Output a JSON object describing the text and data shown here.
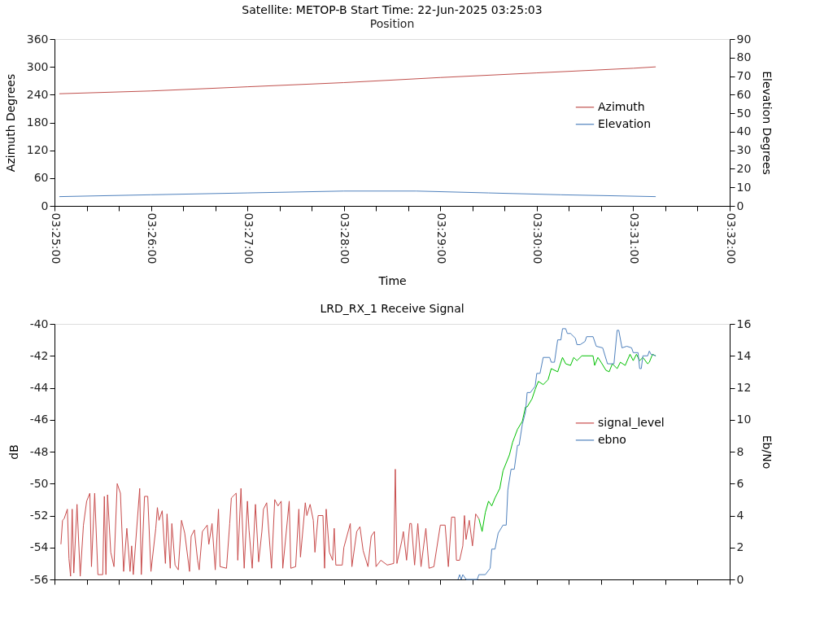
{
  "chart_data": [
    {
      "type": "line",
      "title": "Satellite: METOP-B    Start Time: 22-Jun-2025 03:25:03",
      "subtitle": "Position",
      "xlabel": "Time",
      "ylabel": "Azimuth Degrees",
      "y2label": "Elevation Degrees",
      "xlim": [
        "2025-06-22T03:25:00",
        "2025-06-22T03:32:00"
      ],
      "xticks": [
        {
          "value": "2025-06-22T03:25:00",
          "label": "03:25:00"
        },
        {
          "value": "2025-06-22T03:25:20",
          "label": null
        },
        {
          "value": "2025-06-22T03:25:40",
          "label": null
        },
        {
          "value": "2025-06-22T03:26:00",
          "label": "03:26:00"
        },
        {
          "value": "2025-06-22T03:26:20",
          "label": null
        },
        {
          "value": "2025-06-22T03:26:40",
          "label": null
        },
        {
          "value": "2025-06-22T03:27:00",
          "label": "03:27:00"
        },
        {
          "value": "2025-06-22T03:27:20",
          "label": null
        },
        {
          "value": "2025-06-22T03:27:40",
          "label": null
        },
        {
          "value": "2025-06-22T03:28:00",
          "label": "03:28:00"
        },
        {
          "value": "2025-06-22T03:28:20",
          "label": null
        },
        {
          "value": "2025-06-22T03:28:40",
          "label": null
        },
        {
          "value": "2025-06-22T03:29:00",
          "label": "03:29:00"
        },
        {
          "value": "2025-06-22T03:29:20",
          "label": null
        },
        {
          "value": "2025-06-22T03:29:40",
          "label": null
        },
        {
          "value": "2025-06-22T03:30:00",
          "label": "03:30:00"
        },
        {
          "value": "2025-06-22T03:30:20",
          "label": null
        },
        {
          "value": "2025-06-22T03:30:40",
          "label": null
        },
        {
          "value": "2025-06-22T03:31:00",
          "label": "03:31:00"
        },
        {
          "value": "2025-06-22T03:31:20",
          "label": null
        },
        {
          "value": "2025-06-22T03:31:40",
          "label": null
        },
        {
          "value": "2025-06-22T03:32:00",
          "label": "03:32:00"
        }
      ],
      "ylim": [
        0,
        360
      ],
      "yticks": [
        0,
        60,
        120,
        180,
        240,
        300,
        360
      ],
      "y2lim": [
        0,
        90
      ],
      "y2ticks": [
        0,
        10,
        20,
        30,
        40,
        50,
        60,
        70,
        80,
        90
      ],
      "grid": false,
      "legend": "right",
      "marker": "none",
      "line_style": "solid",
      "series": [
        {
          "name": "Azimuth",
          "color": "#c0504d",
          "x": [
            "2025-06-22T03:25:03",
            "2025-06-22T03:26:00",
            "2025-06-22T03:27:00",
            "2025-06-22T03:28:00",
            "2025-06-22T03:29:00",
            "2025-06-22T03:30:00",
            "2025-06-22T03:31:00",
            "2025-06-22T03:31:14"
          ],
          "values": [
            242,
            248,
            257,
            266,
            277,
            287,
            297,
            300
          ]
        },
        {
          "name": "Elevation",
          "color": "#4f81bd",
          "axis": "y2",
          "x": [
            "2025-06-22T03:25:03",
            "2025-06-22T03:26:00",
            "2025-06-22T03:27:00",
            "2025-06-22T03:28:00",
            "2025-06-22T03:28:45",
            "2025-06-22T03:29:30",
            "2025-06-22T03:30:15",
            "2025-06-22T03:31:14"
          ],
          "values": [
            5,
            6,
            7,
            8,
            8,
            7,
            6,
            5
          ]
        }
      ]
    },
    {
      "type": "line",
      "title": "LRD_RX_1 Receive Signal",
      "ylabel": "dB",
      "y2label": "Eb/No",
      "xlim": [
        "2025-06-22T03:25:00",
        "2025-06-22T03:32:00"
      ],
      "xticks": [
        {
          "value": "2025-06-22T03:25:00",
          "label": null
        },
        {
          "value": "2025-06-22T03:25:20",
          "label": null
        },
        {
          "value": "2025-06-22T03:25:40",
          "label": null
        },
        {
          "value": "2025-06-22T03:26:00",
          "label": null
        },
        {
          "value": "2025-06-22T03:26:20",
          "label": null
        },
        {
          "value": "2025-06-22T03:26:40",
          "label": null
        },
        {
          "value": "2025-06-22T03:27:00",
          "label": null
        },
        {
          "value": "2025-06-22T03:27:20",
          "label": null
        },
        {
          "value": "2025-06-22T03:27:40",
          "label": null
        },
        {
          "value": "2025-06-22T03:28:00",
          "label": null
        },
        {
          "value": "2025-06-22T03:28:20",
          "label": null
        },
        {
          "value": "2025-06-22T03:28:40",
          "label": null
        },
        {
          "value": "2025-06-22T03:29:00",
          "label": null
        },
        {
          "value": "2025-06-22T03:29:20",
          "label": null
        },
        {
          "value": "2025-06-22T03:29:40",
          "label": null
        },
        {
          "value": "2025-06-22T03:30:00",
          "label": null
        },
        {
          "value": "2025-06-22T03:30:20",
          "label": null
        },
        {
          "value": "2025-06-22T03:30:40",
          "label": null
        },
        {
          "value": "2025-06-22T03:31:00",
          "label": null
        },
        {
          "value": "2025-06-22T03:31:20",
          "label": null
        },
        {
          "value": "2025-06-22T03:31:40",
          "label": null
        },
        {
          "value": "2025-06-22T03:32:00",
          "label": null
        }
      ],
      "ylim": [
        -56,
        -40
      ],
      "yticks": [
        -56,
        -54,
        -52,
        -50,
        -48,
        -46,
        -44,
        -42,
        -40
      ],
      "y2lim": [
        0,
        16
      ],
      "y2ticks": [
        0,
        2,
        4,
        6,
        8,
        10,
        12,
        14,
        16
      ],
      "tick_labels": "y",
      "grid": false,
      "legend": "right",
      "marker": "none",
      "line_style": "solid",
      "series": [
        {
          "name": "signal_level",
          "color": "#c84b4b",
          "x": [
            "2025-06-22T03:25:04",
            "2025-06-22T03:25:05",
            "2025-06-22T03:25:06",
            "2025-06-22T03:25:08",
            "2025-06-22T03:25:09",
            "2025-06-22T03:25:10",
            "2025-06-22T03:25:11",
            "2025-06-22T03:25:12",
            "2025-06-22T03:25:14",
            "2025-06-22T03:25:16",
            "2025-06-22T03:25:18",
            "2025-06-22T03:25:20",
            "2025-06-22T03:25:22",
            "2025-06-22T03:25:23",
            "2025-06-22T03:25:25",
            "2025-06-22T03:25:27",
            "2025-06-22T03:25:30",
            "2025-06-22T03:25:31",
            "2025-06-22T03:25:32",
            "2025-06-22T03:25:33",
            "2025-06-22T03:25:35",
            "2025-06-22T03:25:37",
            "2025-06-22T03:25:39",
            "2025-06-22T03:25:41",
            "2025-06-22T03:25:43",
            "2025-06-22T03:25:45",
            "2025-06-22T03:25:47",
            "2025-06-22T03:25:48",
            "2025-06-22T03:25:49",
            "2025-06-22T03:25:53",
            "2025-06-22T03:25:54",
            "2025-06-22T03:25:56",
            "2025-06-22T03:25:58",
            "2025-06-22T03:26:00",
            "2025-06-22T03:26:03",
            "2025-06-22T03:26:04",
            "2025-06-22T03:26:05",
            "2025-06-22T03:26:07",
            "2025-06-22T03:26:09",
            "2025-06-22T03:26:10",
            "2025-06-22T03:26:12",
            "2025-06-22T03:26:13",
            "2025-06-22T03:26:15",
            "2025-06-22T03:26:17",
            "2025-06-22T03:26:19",
            "2025-06-22T03:26:21",
            "2025-06-22T03:26:24",
            "2025-06-22T03:26:25",
            "2025-06-22T03:26:27",
            "2025-06-22T03:26:29",
            "2025-06-22T03:26:30",
            "2025-06-22T03:26:32",
            "2025-06-22T03:26:35",
            "2025-06-22T03:26:36",
            "2025-06-22T03:26:38",
            "2025-06-22T03:26:40",
            "2025-06-22T03:26:42",
            "2025-06-22T03:26:43",
            "2025-06-22T03:26:47",
            "2025-06-22T03:26:49",
            "2025-06-22T03:26:50",
            "2025-06-22T03:26:53",
            "2025-06-22T03:26:54",
            "2025-06-22T03:26:56",
            "2025-06-22T03:26:58",
            "2025-06-22T03:27:00",
            "2025-06-22T03:27:01",
            "2025-06-22T03:27:03",
            "2025-06-22T03:27:05",
            "2025-06-22T03:27:07",
            "2025-06-22T03:27:09",
            "2025-06-22T03:27:10",
            "2025-06-22T03:27:12",
            "2025-06-22T03:27:15",
            "2025-06-22T03:27:17",
            "2025-06-22T03:27:19",
            "2025-06-22T03:27:21",
            "2025-06-22T03:27:22",
            "2025-06-22T03:27:26",
            "2025-06-22T03:27:27",
            "2025-06-22T03:27:30",
            "2025-06-22T03:27:32",
            "2025-06-22T03:27:33",
            "2025-06-22T03:27:36",
            "2025-06-22T03:27:37",
            "2025-06-22T03:27:39",
            "2025-06-22T03:27:41",
            "2025-06-22T03:27:42",
            "2025-06-22T03:27:44",
            "2025-06-22T03:27:47",
            "2025-06-22T03:27:48",
            "2025-06-22T03:27:49",
            "2025-06-22T03:27:51",
            "2025-06-22T03:27:53",
            "2025-06-22T03:27:54",
            "2025-06-22T03:27:55",
            "2025-06-22T03:27:59",
            "2025-06-22T03:28:00",
            "2025-06-22T03:28:04",
            "2025-06-22T03:28:05",
            "2025-06-22T03:28:08",
            "2025-06-22T03:28:10",
            "2025-06-22T03:28:12",
            "2025-06-22T03:28:15",
            "2025-06-22T03:28:17",
            "2025-06-22T03:28:19",
            "2025-06-22T03:28:20",
            "2025-06-22T03:28:23",
            "2025-06-22T03:28:27",
            "2025-06-22T03:28:31",
            "2025-06-22T03:28:32",
            "2025-06-22T03:28:33",
            "2025-06-22T03:28:36",
            "2025-06-22T03:28:37",
            "2025-06-22T03:28:39",
            "2025-06-22T03:28:41",
            "2025-06-22T03:28:42",
            "2025-06-22T03:28:44",
            "2025-06-22T03:28:46",
            "2025-06-22T03:28:48",
            "2025-06-22T03:28:51",
            "2025-06-22T03:28:53",
            "2025-06-22T03:28:56",
            "2025-06-22T03:29:00",
            "2025-06-22T03:29:03",
            "2025-06-22T03:29:05",
            "2025-06-22T03:29:07",
            "2025-06-22T03:29:09",
            "2025-06-22T03:29:10",
            "2025-06-22T03:29:12",
            "2025-06-22T03:29:14",
            "2025-06-22T03:29:15",
            "2025-06-22T03:29:16",
            "2025-06-22T03:29:18",
            "2025-06-22T03:29:20",
            "2025-06-22T03:29:21",
            "2025-06-22T03:29:22",
            "2025-06-22T03:29:24"
          ],
          "values": [
            -53.8,
            -52.3,
            -52.2,
            -51.6,
            -54.7,
            -55.8,
            -51.6,
            -55.6,
            -51.3,
            -55.8,
            -52.6,
            -51.1,
            -50.6,
            -55.2,
            -50.6,
            -55.7,
            -55.7,
            -50.8,
            -55.7,
            -50.7,
            -54.3,
            -55.2,
            -50.0,
            -50.6,
            -55.5,
            -52.8,
            -55.5,
            -53.9,
            -55.7,
            -50.3,
            -55.7,
            -50.8,
            -50.8,
            -55.5,
            -52.8,
            -51.5,
            -52.3,
            -51.7,
            -55.0,
            -51.9,
            -55.3,
            -52.5,
            -55.1,
            -55.4,
            -52.3,
            -53.1,
            -55.5,
            -53.3,
            -52.9,
            -54.8,
            -55.4,
            -53.0,
            -52.6,
            -53.8,
            -52.5,
            -55.4,
            -51.6,
            -55.2,
            -55.3,
            -52.5,
            -50.9,
            -50.6,
            -54.8,
            -50.3,
            -55.3,
            -51.1,
            -52.9,
            -55.3,
            -51.3,
            -54.9,
            -53.0,
            -51.6,
            -51.2,
            -55.3,
            -51.0,
            -51.4,
            -51.1,
            -55.3,
            -51.1,
            -55.3,
            -55.2,
            -51.6,
            -54.6,
            -51.2,
            -52.0,
            -51.3,
            -52.3,
            -54.3,
            -52.0,
            -52.0,
            -55.3,
            -51.6,
            -54.3,
            -54.8,
            -52.8,
            -55.1,
            -55.1,
            -54.0,
            -52.5,
            -55.2,
            -53.0,
            -52.7,
            -54.2,
            -55.2,
            -53.3,
            -53.0,
            -55.2,
            -54.8,
            -55.1,
            -55.0,
            -49.1,
            -55.0,
            -53.6,
            -53.0,
            -54.8,
            -52.5,
            -52.5,
            -55.1,
            -52.5,
            -55.2,
            -52.8,
            -55.3,
            -55.2,
            -52.6,
            -52.6,
            -55.2,
            -52.1,
            -52.1,
            -54.8,
            -54.8,
            -53.9,
            -52.0,
            -53.5,
            -52.3,
            -53.9,
            -52.9,
            -51.9,
            -52.2
          ]
        },
        {
          "color": "#00c000",
          "x": [
            "2025-06-22T03:29:24",
            "2025-06-22T03:29:26",
            "2025-06-22T03:29:28",
            "2025-06-22T03:29:30",
            "2025-06-22T03:29:32",
            "2025-06-22T03:29:34",
            "2025-06-22T03:29:37",
            "2025-06-22T03:29:39",
            "2025-06-22T03:29:43",
            "2025-06-22T03:29:45",
            "2025-06-22T03:29:48",
            "2025-06-22T03:29:51",
            "2025-06-22T03:29:53",
            "2025-06-22T03:29:54",
            "2025-06-22T03:29:57",
            "2025-06-22T03:29:59",
            "2025-06-22T03:30:01",
            "2025-06-22T03:30:04",
            "2025-06-22T03:30:07",
            "2025-06-22T03:30:09",
            "2025-06-22T03:30:13",
            "2025-06-22T03:30:16",
            "2025-06-22T03:30:18",
            "2025-06-22T03:30:21",
            "2025-06-22T03:30:23",
            "2025-06-22T03:30:25",
            "2025-06-22T03:30:28",
            "2025-06-22T03:30:35",
            "2025-06-22T03:30:36",
            "2025-06-22T03:30:38",
            "2025-06-22T03:30:40",
            "2025-06-22T03:30:43",
            "2025-06-22T03:30:45",
            "2025-06-22T03:30:47",
            "2025-06-22T03:30:50",
            "2025-06-22T03:30:52",
            "2025-06-22T03:30:55",
            "2025-06-22T03:30:58",
            "2025-06-22T03:31:00",
            "2025-06-22T03:31:02",
            "2025-06-22T03:31:04",
            "2025-06-22T03:31:06",
            "2025-06-22T03:31:09",
            "2025-06-22T03:31:10",
            "2025-06-22T03:31:12",
            "2025-06-22T03:31:14"
          ],
          "values": [
            -52.2,
            -53.0,
            -51.8,
            -51.1,
            -51.4,
            -50.9,
            -50.3,
            -49.2,
            -48.2,
            -47.4,
            -46.6,
            -46.1,
            -45.2,
            -45.2,
            -44.7,
            -44.1,
            -43.6,
            -43.8,
            -43.5,
            -42.8,
            -43.0,
            -42.1,
            -42.5,
            -42.6,
            -42.1,
            -42.3,
            -42.0,
            -42.0,
            -42.6,
            -42.1,
            -42.4,
            -42.9,
            -43.0,
            -42.5,
            -42.8,
            -42.4,
            -42.6,
            -41.9,
            -42.3,
            -41.9,
            -42.3,
            -42.1,
            -42.5,
            -42.4,
            -41.9,
            -42.0
          ]
        },
        {
          "name": "ebno",
          "color": "#4f81bd",
          "axis": "y2",
          "x": [
            "2025-06-22T03:29:11",
            "2025-06-22T03:29:12",
            "2025-06-22T03:29:13",
            "2025-06-22T03:29:14",
            "2025-06-22T03:29:16",
            "2025-06-22T03:29:23",
            "2025-06-22T03:29:24",
            "2025-06-22T03:29:28",
            "2025-06-22T03:29:31",
            "2025-06-22T03:29:32",
            "2025-06-22T03:29:34",
            "2025-06-22T03:29:36",
            "2025-06-22T03:29:39",
            "2025-06-22T03:29:41",
            "2025-06-22T03:29:42",
            "2025-06-22T03:29:44",
            "2025-06-22T03:29:46",
            "2025-06-22T03:29:48",
            "2025-06-22T03:29:49",
            "2025-06-22T03:29:51",
            "2025-06-22T03:29:53",
            "2025-06-22T03:29:54",
            "2025-06-22T03:29:56",
            "2025-06-22T03:29:59",
            "2025-06-22T03:30:00",
            "2025-06-22T03:30:02",
            "2025-06-22T03:30:04",
            "2025-06-22T03:30:08",
            "2025-06-22T03:30:09",
            "2025-06-22T03:30:11",
            "2025-06-22T03:30:13",
            "2025-06-22T03:30:15",
            "2025-06-22T03:30:16",
            "2025-06-22T03:30:18",
            "2025-06-22T03:30:19",
            "2025-06-22T03:30:21",
            "2025-06-22T03:30:24",
            "2025-06-22T03:30:25",
            "2025-06-22T03:30:27",
            "2025-06-22T03:30:30",
            "2025-06-22T03:30:31",
            "2025-06-22T03:30:35",
            "2025-06-22T03:30:37",
            "2025-06-22T03:30:41",
            "2025-06-22T03:30:44",
            "2025-06-22T03:30:48",
            "2025-06-22T03:30:50",
            "2025-06-22T03:30:51",
            "2025-06-22T03:30:53",
            "2025-06-22T03:30:56",
            "2025-06-22T03:30:59",
            "2025-06-22T03:31:00",
            "2025-06-22T03:31:03",
            "2025-06-22T03:31:04",
            "2025-06-22T03:31:05",
            "2025-06-22T03:31:06",
            "2025-06-22T03:31:09",
            "2025-06-22T03:31:10",
            "2025-06-22T03:31:11",
            "2025-06-22T03:31:14"
          ],
          "values": [
            0,
            0.3,
            0,
            0.3,
            0,
            0,
            0.3,
            0.3,
            0.7,
            1.9,
            1.9,
            2.9,
            3.4,
            3.4,
            5.6,
            6.9,
            6.9,
            8.4,
            8.4,
            9.7,
            10.5,
            11.7,
            11.7,
            12.1,
            12.9,
            12.9,
            13.9,
            13.9,
            13.6,
            13.6,
            15.0,
            15.0,
            15.7,
            15.7,
            15.4,
            15.4,
            15.1,
            14.7,
            14.7,
            14.9,
            15.2,
            15.2,
            14.6,
            14.5,
            13.5,
            13.5,
            15.6,
            15.6,
            14.5,
            14.6,
            14.5,
            14.2,
            14.2,
            13.2,
            13.2,
            14.0,
            14.0,
            14.3,
            14.1,
            14.0
          ]
        }
      ]
    }
  ]
}
